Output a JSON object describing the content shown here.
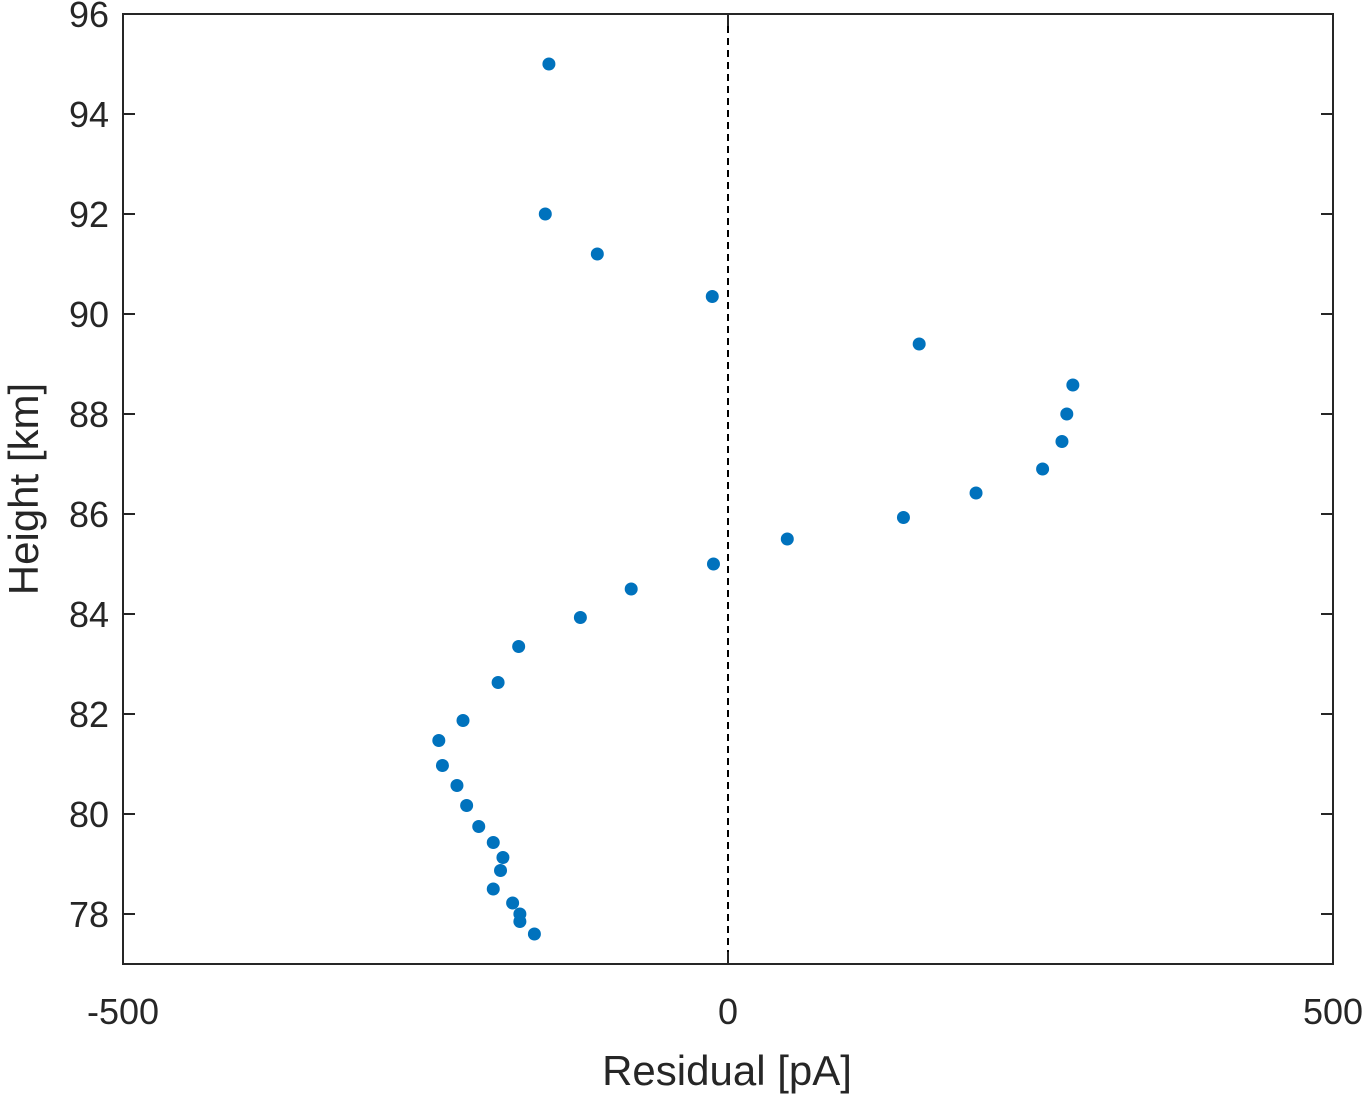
{
  "chart_data": {
    "type": "scatter",
    "xlabel": "Residual [pA]",
    "ylabel": "Height [km]",
    "xlim": [
      -500,
      500
    ],
    "ylim": [
      77,
      96
    ],
    "xticks": [
      -500,
      0,
      500
    ],
    "xtick_labels": [
      "-500",
      "0",
      "500"
    ],
    "yticks": [
      78,
      80,
      82,
      84,
      86,
      88,
      90,
      92,
      94,
      96
    ],
    "ytick_labels": [
      "78",
      "80",
      "82",
      "84",
      "86",
      "88",
      "90",
      "92",
      "94",
      "96"
    ],
    "grid": false,
    "legend": "none",
    "reference_line": {
      "x": 0,
      "style": "dashed",
      "color": "#000000"
    },
    "marker_color": "#0072BD",
    "series": [
      {
        "points": [
          {
            "x": -148,
            "y": 95.0
          },
          {
            "x": -151,
            "y": 92.0
          },
          {
            "x": -108,
            "y": 91.2
          },
          {
            "x": -13,
            "y": 90.35
          },
          {
            "x": 158,
            "y": 89.4
          },
          {
            "x": 285,
            "y": 88.58
          },
          {
            "x": 280,
            "y": 88.0
          },
          {
            "x": 276,
            "y": 87.45
          },
          {
            "x": 260,
            "y": 86.9
          },
          {
            "x": 205,
            "y": 86.42
          },
          {
            "x": 145,
            "y": 85.93
          },
          {
            "x": 49,
            "y": 85.5
          },
          {
            "x": -12,
            "y": 85.0
          },
          {
            "x": -80,
            "y": 84.5
          },
          {
            "x": -122,
            "y": 83.93
          },
          {
            "x": -173,
            "y": 83.35
          },
          {
            "x": -190,
            "y": 82.63
          },
          {
            "x": -219,
            "y": 81.87
          },
          {
            "x": -239,
            "y": 81.47
          },
          {
            "x": -236,
            "y": 80.97
          },
          {
            "x": -224,
            "y": 80.57
          },
          {
            "x": -216,
            "y": 80.17
          },
          {
            "x": -206,
            "y": 79.75
          },
          {
            "x": -194,
            "y": 79.43
          },
          {
            "x": -186,
            "y": 79.13
          },
          {
            "x": -188,
            "y": 78.87
          },
          {
            "x": -194,
            "y": 78.5
          },
          {
            "x": -178,
            "y": 78.22
          },
          {
            "x": -172,
            "y": 78.0
          },
          {
            "x": -172,
            "y": 77.85
          },
          {
            "x": -160,
            "y": 77.6
          }
        ]
      }
    ]
  }
}
